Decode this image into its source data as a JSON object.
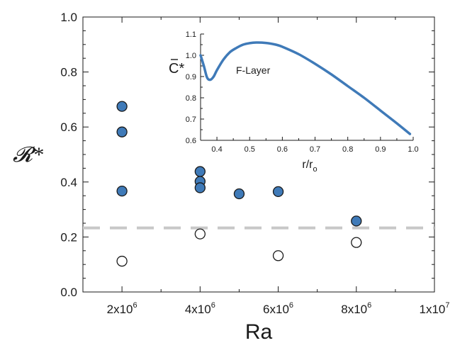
{
  "chart_data": [
    {
      "type": "scatter",
      "xlabel": "Ra",
      "ylabel": "𝓡*",
      "xlim": [
        1000000,
        10000000
      ],
      "ylim": [
        0.0,
        1.0
      ],
      "x_ticks": [
        {
          "value": 2000000,
          "base": "2x10",
          "exp": "6"
        },
        {
          "value": 4000000,
          "base": "4x10",
          "exp": "6"
        },
        {
          "value": 6000000,
          "base": "6x10",
          "exp": "6"
        },
        {
          "value": 8000000,
          "base": "8x10",
          "exp": "6"
        },
        {
          "value": 10000000,
          "base": "1x10",
          "exp": "7"
        }
      ],
      "y_ticks": [
        "0.0",
        "0.2",
        "0.4",
        "0.6",
        "0.8",
        "1.0"
      ],
      "reference_line": {
        "y": 0.233,
        "style": "dashed",
        "color": "#c8c8c8"
      },
      "series": [
        {
          "marker": "filled-circle",
          "color": "#3f7ab8",
          "points": [
            {
              "x": 2000000,
              "y": 0.675
            },
            {
              "x": 2000000,
              "y": 0.582
            },
            {
              "x": 2000000,
              "y": 0.367
            },
            {
              "x": 4000000,
              "y": 0.438
            },
            {
              "x": 4000000,
              "y": 0.402
            },
            {
              "x": 4000000,
              "y": 0.379
            },
            {
              "x": 5000000,
              "y": 0.357
            },
            {
              "x": 6000000,
              "y": 0.365
            },
            {
              "x": 8000000,
              "y": 0.258
            }
          ]
        },
        {
          "marker": "open-circle",
          "color": "#ffffff",
          "points": [
            {
              "x": 2000000,
              "y": 0.112
            },
            {
              "x": 4000000,
              "y": 0.211
            },
            {
              "x": 6000000,
              "y": 0.132
            },
            {
              "x": 8000000,
              "y": 0.18
            }
          ]
        }
      ]
    },
    {
      "type": "line",
      "xlabel": "r/r",
      "xlabel_sub": "o",
      "ylabel": "C*",
      "annotation": "F-Layer",
      "xlim": [
        0.35,
        1.0
      ],
      "ylim": [
        0.6,
        1.1
      ],
      "x_ticks": [
        "0.4",
        "0.5",
        "0.6",
        "0.7",
        "0.8",
        "0.9",
        "1.0"
      ],
      "y_ticks": [
        "0.6",
        "0.7",
        "0.8",
        "0.9",
        "1.0",
        "1.1"
      ],
      "line_color": "#3f7ab8",
      "series": [
        {
          "x": [
            0.35,
            0.36,
            0.37,
            0.38,
            0.39,
            0.4,
            0.42,
            0.44,
            0.46,
            0.48,
            0.5,
            0.52,
            0.55,
            0.58,
            0.6,
            0.65,
            0.7,
            0.75,
            0.8,
            0.85,
            0.9,
            0.95,
            0.99
          ],
          "y": [
            1.0,
            0.95,
            0.895,
            0.885,
            0.9,
            0.93,
            0.98,
            1.015,
            1.035,
            1.05,
            1.057,
            1.06,
            1.058,
            1.05,
            1.04,
            1.005,
            0.96,
            0.91,
            0.855,
            0.8,
            0.74,
            0.68,
            0.63
          ]
        }
      ]
    }
  ]
}
